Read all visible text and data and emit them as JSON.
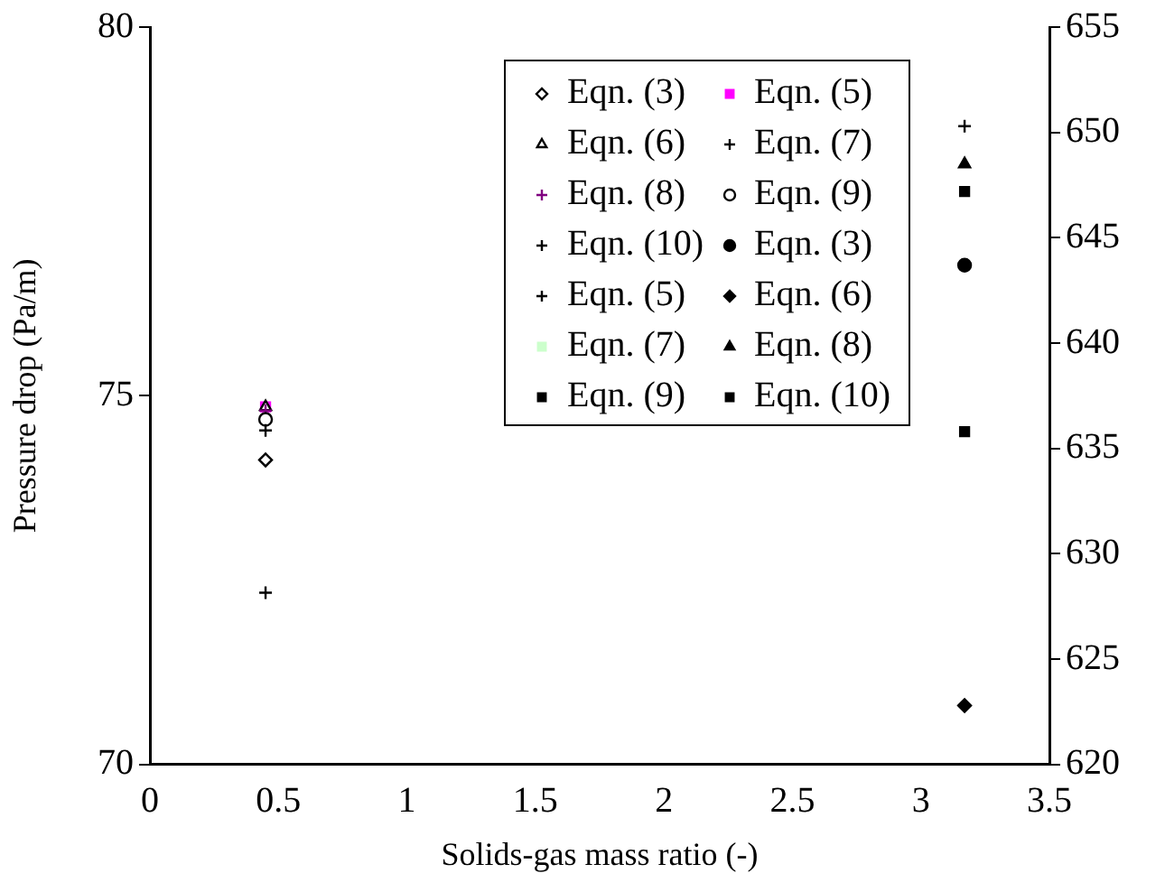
{
  "chart_data": {
    "type": "scatter",
    "xlabel": "Solids-gas mass ratio (-)",
    "ylabel": "Pressure drop (Pa/m)",
    "x": [
      0.45,
      3.17
    ],
    "xlim": [
      0,
      3.5
    ],
    "xticks": [
      0,
      0.5,
      1,
      1.5,
      2,
      2.5,
      3,
      3.5
    ],
    "ylim": [
      70,
      80
    ],
    "yticks": [
      70,
      75,
      80
    ],
    "y2lim": [
      620,
      655
    ],
    "y2ticks": [
      620,
      625,
      630,
      635,
      640,
      645,
      650,
      655
    ],
    "grid": false,
    "legend": "top right",
    "series": [
      {
        "name": "Eqn. (3)",
        "color": "#000000",
        "marker": "diamond",
        "axis": "y",
        "values": [
          74.13,
          null
        ]
      },
      {
        "name": "Eqn. (5)",
        "color": "#ff00ff",
        "marker": "square",
        "axis": "y",
        "values": [
          74.85,
          null
        ]
      },
      {
        "name": "Eqn. (6)",
        "color": "#000000",
        "marker": "triangle",
        "axis": "y",
        "values": [
          74.85,
          null
        ]
      },
      {
        "name": "Eqn. (7)",
        "color": "#000000",
        "marker": "cross",
        "axis": "y",
        "values": [
          72.33,
          null
        ]
      },
      {
        "name": "Eqn. (8)",
        "color": "#800080",
        "marker": "cross",
        "axis": "y",
        "values": [
          74.8,
          null
        ]
      },
      {
        "name": "Eqn. (9)",
        "color": "#000000",
        "marker": "circle",
        "axis": "y",
        "values": [
          74.68,
          null
        ]
      },
      {
        "name": "Eqn. (10)",
        "color": "#000000",
        "marker": "cross",
        "axis": "y",
        "values": [
          74.53,
          null
        ]
      },
      {
        "name": "Eqn. (3)",
        "color": "#000000",
        "marker": "circle",
        "axis": "y2",
        "values": [
          null,
          643.7
        ]
      },
      {
        "name": "Eqn. (5)",
        "color": "#000000",
        "marker": "cross",
        "axis": "y2",
        "values": [
          null,
          650.3
        ]
      },
      {
        "name": "Eqn. (6)",
        "color": "#000000",
        "marker": "diamond",
        "axis": "y2",
        "values": [
          null,
          622.8
        ]
      },
      {
        "name": "Eqn. (7)",
        "color": "#ccffcc",
        "marker": "square",
        "axis": "y2",
        "values": [
          null,
          null
        ]
      },
      {
        "name": "Eqn. (8)",
        "color": "#000000",
        "marker": "triangle",
        "axis": "y2",
        "values": [
          null,
          648.5
        ]
      },
      {
        "name": "Eqn. (9)",
        "color": "#000000",
        "marker": "square",
        "axis": "y2",
        "values": [
          null,
          647.2
        ]
      },
      {
        "name": "Eqn. (10)",
        "color": "#000000",
        "marker": "square",
        "axis": "y2",
        "values": [
          null,
          635.8
        ]
      }
    ]
  }
}
